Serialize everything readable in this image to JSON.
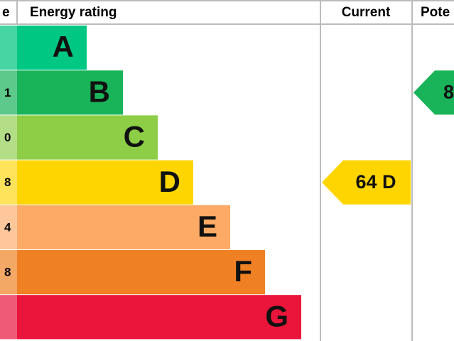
{
  "header": {
    "score": "e",
    "rating": "Energy rating",
    "current": "Current",
    "potential": "Pote"
  },
  "bands": [
    {
      "letter": "A",
      "color": "#00c781",
      "light": "#45d6a4"
    },
    {
      "letter": "B",
      "score": "1",
      "color": "#19b459",
      "light": "#5dc98a"
    },
    {
      "letter": "C",
      "score": "0",
      "color": "#8dce46",
      "light": "#b3de87"
    },
    {
      "letter": "D",
      "score": "8",
      "color": "#ffd500",
      "light": "#ffe35a"
    },
    {
      "letter": "E",
      "score": "4",
      "color": "#fcaa65",
      "light": "#fdc79b"
    },
    {
      "letter": "F",
      "score": "8",
      "color": "#ef8023",
      "light": "#f4a865"
    },
    {
      "letter": "G",
      "color": "#e9153b",
      "light": "#ef5a76"
    }
  ],
  "current": {
    "label": "64 D",
    "band": 3
  },
  "potential": {
    "label": "8",
    "band": 1
  }
}
